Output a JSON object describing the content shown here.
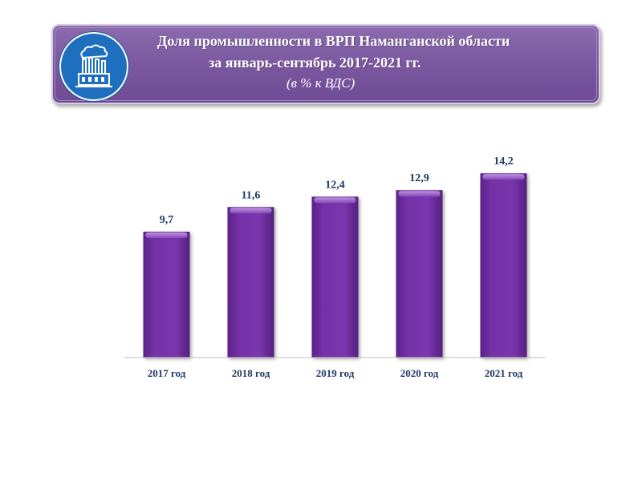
{
  "header": {
    "title_line1": "Доля промышленности в ВРП Наманганской области",
    "title_line2": "за январь-сентябрь 2017-2021 гг.",
    "subtitle": "(в % к ВДС)",
    "icon": "factory-icon"
  },
  "colors": {
    "banner": "#7a569f",
    "bar": "#7030a0",
    "label": "#1f3864",
    "logo_circle": "#1f6fbf"
  },
  "chart_data": {
    "type": "bar",
    "categories": [
      "2017 год",
      "2018 год",
      "2019 год",
      "2020 год",
      "2021 год"
    ],
    "values": [
      9.7,
      11.6,
      12.4,
      12.9,
      14.2
    ],
    "value_labels": [
      "9,7",
      "11,6",
      "12,4",
      "12,9",
      "14,2"
    ],
    "title": "",
    "xlabel": "",
    "ylabel": "",
    "ylim": [
      0,
      15.2
    ],
    "grid": false,
    "legend": "none"
  }
}
